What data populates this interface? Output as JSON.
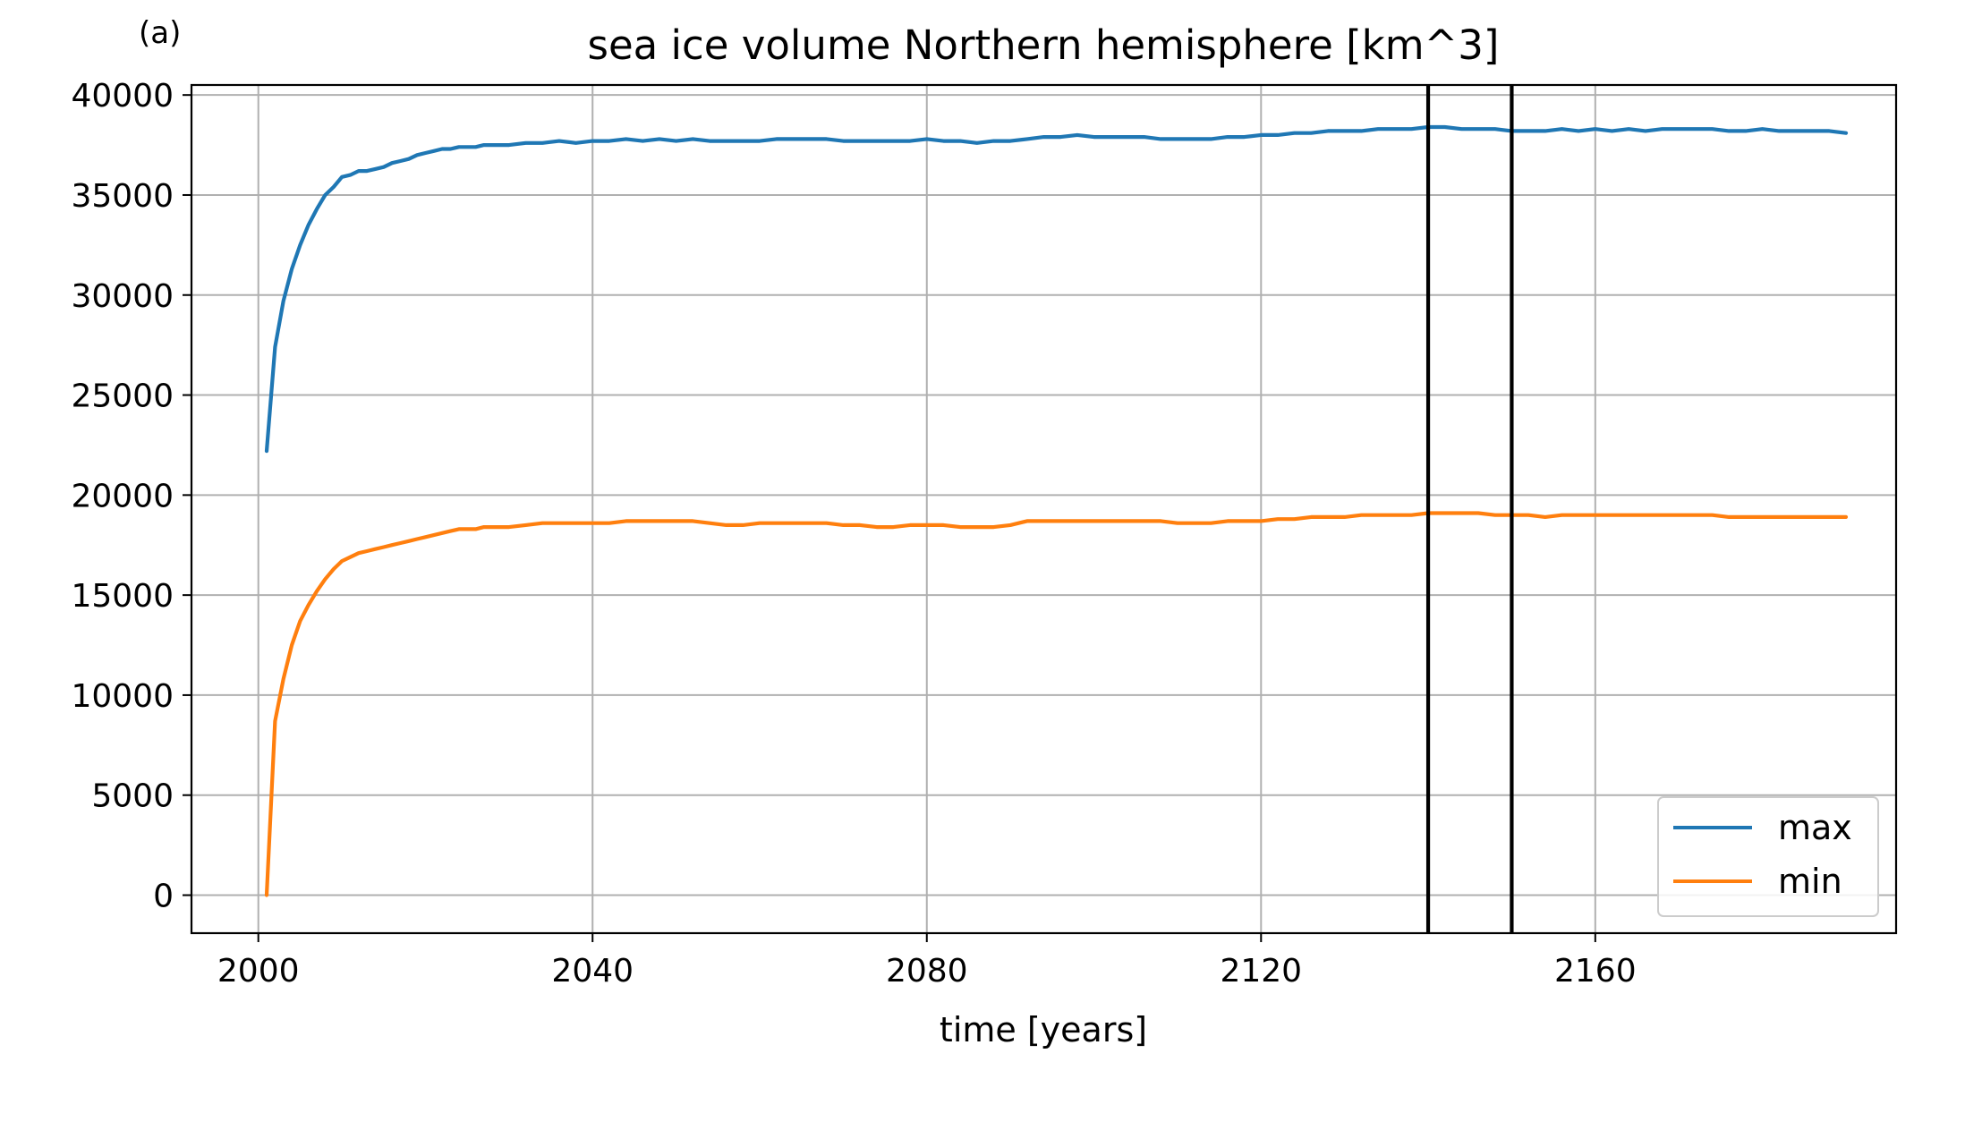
{
  "panel_label": "(a)",
  "chart_data": {
    "type": "line",
    "title": "sea ice volume Northern hemisphere [km^3]",
    "xlabel": "time [years]",
    "ylabel": "",
    "xlim": [
      1992,
      2196
    ],
    "ylim": [
      -1900,
      40500
    ],
    "xticks": [
      2000,
      2040,
      2080,
      2120,
      2160
    ],
    "yticks": [
      0,
      5000,
      10000,
      15000,
      20000,
      25000,
      30000,
      35000,
      40000
    ],
    "grid": true,
    "legend_position": "lower-right",
    "vertical_lines": [
      2140,
      2150
    ],
    "series": [
      {
        "name": "max",
        "color": "#1f77b4",
        "x": [
          2001,
          2002,
          2003,
          2004,
          2005,
          2006,
          2007,
          2008,
          2009,
          2010,
          2011,
          2012,
          2013,
          2014,
          2015,
          2016,
          2017,
          2018,
          2019,
          2020,
          2021,
          2022,
          2023,
          2024,
          2025,
          2026,
          2027,
          2028,
          2030,
          2032,
          2034,
          2036,
          2038,
          2040,
          2042,
          2044,
          2046,
          2048,
          2050,
          2052,
          2054,
          2056,
          2058,
          2060,
          2062,
          2064,
          2066,
          2068,
          2070,
          2072,
          2074,
          2076,
          2078,
          2080,
          2082,
          2084,
          2086,
          2088,
          2090,
          2092,
          2094,
          2096,
          2098,
          2100,
          2102,
          2104,
          2106,
          2108,
          2110,
          2112,
          2114,
          2116,
          2118,
          2120,
          2122,
          2124,
          2126,
          2128,
          2130,
          2132,
          2134,
          2136,
          2138,
          2140,
          2142,
          2144,
          2146,
          2148,
          2150,
          2152,
          2154,
          2156,
          2158,
          2160,
          2162,
          2164,
          2166,
          2168,
          2170,
          2172,
          2174,
          2176,
          2178,
          2180,
          2182,
          2184,
          2186,
          2188,
          2190
        ],
        "y": [
          22200,
          27400,
          29700,
          31300,
          32500,
          33500,
          34300,
          35000,
          35400,
          35900,
          36000,
          36200,
          36200,
          36300,
          36400,
          36600,
          36700,
          36800,
          37000,
          37100,
          37200,
          37300,
          37300,
          37400,
          37400,
          37400,
          37500,
          37500,
          37500,
          37600,
          37600,
          37700,
          37600,
          37700,
          37700,
          37800,
          37700,
          37800,
          37700,
          37800,
          37700,
          37700,
          37700,
          37700,
          37800,
          37800,
          37800,
          37800,
          37700,
          37700,
          37700,
          37700,
          37700,
          37800,
          37700,
          37700,
          37600,
          37700,
          37700,
          37800,
          37900,
          37900,
          38000,
          37900,
          37900,
          37900,
          37900,
          37800,
          37800,
          37800,
          37800,
          37900,
          37900,
          38000,
          38000,
          38100,
          38100,
          38200,
          38200,
          38200,
          38300,
          38300,
          38300,
          38400,
          38400,
          38300,
          38300,
          38300,
          38200,
          38200,
          38200,
          38300,
          38200,
          38300,
          38200,
          38300,
          38200,
          38300,
          38300,
          38300,
          38300,
          38200,
          38200,
          38300,
          38200,
          38200,
          38200,
          38200,
          38100
        ]
      },
      {
        "name": "min",
        "color": "#ff7f0e",
        "x": [
          2001,
          2002,
          2003,
          2004,
          2005,
          2006,
          2007,
          2008,
          2009,
          2010,
          2011,
          2012,
          2013,
          2014,
          2015,
          2016,
          2017,
          2018,
          2019,
          2020,
          2021,
          2022,
          2023,
          2024,
          2025,
          2026,
          2027,
          2028,
          2030,
          2032,
          2034,
          2036,
          2038,
          2040,
          2042,
          2044,
          2046,
          2048,
          2050,
          2052,
          2054,
          2056,
          2058,
          2060,
          2062,
          2064,
          2066,
          2068,
          2070,
          2072,
          2074,
          2076,
          2078,
          2080,
          2082,
          2084,
          2086,
          2088,
          2090,
          2092,
          2094,
          2096,
          2098,
          2100,
          2102,
          2104,
          2106,
          2108,
          2110,
          2112,
          2114,
          2116,
          2118,
          2120,
          2122,
          2124,
          2126,
          2128,
          2130,
          2132,
          2134,
          2136,
          2138,
          2140,
          2142,
          2144,
          2146,
          2148,
          2150,
          2152,
          2154,
          2156,
          2158,
          2160,
          2162,
          2164,
          2166,
          2168,
          2170,
          2172,
          2174,
          2176,
          2178,
          2180,
          2182,
          2184,
          2186,
          2188,
          2190
        ],
        "y": [
          0,
          8700,
          10800,
          12500,
          13700,
          14500,
          15200,
          15800,
          16300,
          16700,
          16900,
          17100,
          17200,
          17300,
          17400,
          17500,
          17600,
          17700,
          17800,
          17900,
          18000,
          18100,
          18200,
          18300,
          18300,
          18300,
          18400,
          18400,
          18400,
          18500,
          18600,
          18600,
          18600,
          18600,
          18600,
          18700,
          18700,
          18700,
          18700,
          18700,
          18600,
          18500,
          18500,
          18600,
          18600,
          18600,
          18600,
          18600,
          18500,
          18500,
          18400,
          18400,
          18500,
          18500,
          18500,
          18400,
          18400,
          18400,
          18500,
          18700,
          18700,
          18700,
          18700,
          18700,
          18700,
          18700,
          18700,
          18700,
          18600,
          18600,
          18600,
          18700,
          18700,
          18700,
          18800,
          18800,
          18900,
          18900,
          18900,
          19000,
          19000,
          19000,
          19000,
          19100,
          19100,
          19100,
          19100,
          19000,
          19000,
          19000,
          18900,
          19000,
          19000,
          19000,
          19000,
          19000,
          19000,
          19000,
          19000,
          19000,
          19000,
          18900,
          18900,
          18900,
          18900,
          18900,
          18900,
          18900,
          18900
        ]
      }
    ]
  }
}
